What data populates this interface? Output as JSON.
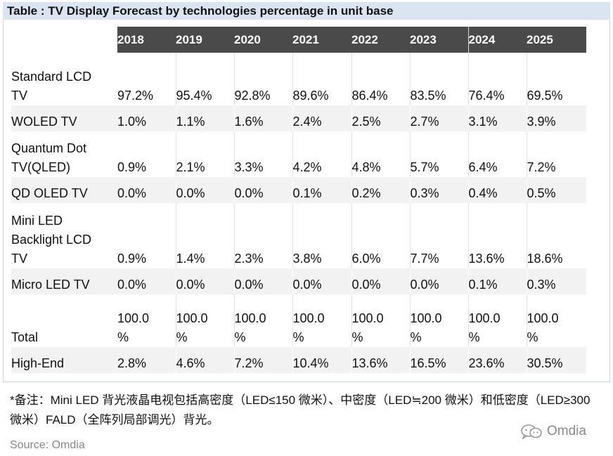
{
  "title": "Table : TV Display Forecast by technologies percentage in unit base",
  "years": [
    "2018",
    "2019",
    "2020",
    "2021",
    "2022",
    "2023",
    "2024",
    "2025"
  ],
  "rows": [
    {
      "label": "Standard LCD\nTV",
      "values": [
        "97.2%",
        "95.4%",
        "92.8%",
        "89.6%",
        "86.4%",
        "83.5%",
        "76.4%",
        "69.5%"
      ]
    },
    {
      "label": "WOLED TV",
      "values": [
        "1.0%",
        "1.1%",
        "1.6%",
        "2.4%",
        "2.5%",
        "2.7%",
        "3.1%",
        "3.9%"
      ]
    },
    {
      "label": "Quantum Dot\nTV(QLED)",
      "values": [
        "0.9%",
        "2.1%",
        "3.3%",
        "4.2%",
        "4.8%",
        "5.7%",
        "6.4%",
        "7.2%"
      ]
    },
    {
      "label": "QD OLED TV",
      "values": [
        "0.0%",
        "0.0%",
        "0.0%",
        "0.1%",
        "0.2%",
        "0.3%",
        "0.4%",
        "0.5%"
      ]
    },
    {
      "label": "Mini LED\nBacklight LCD\nTV",
      "values": [
        "0.9%",
        "1.4%",
        "2.3%",
        "3.8%",
        "6.0%",
        "7.7%",
        "13.6%",
        "18.6%"
      ]
    },
    {
      "label": "Micro LED TV",
      "values": [
        "0.0%",
        "0.0%",
        "0.0%",
        "0.0%",
        "0.0%",
        "0.0%",
        "0.1%",
        "0.3%"
      ]
    },
    {
      "label": "Total",
      "values": [
        "100.0\n%",
        "100.0\n%",
        "100.0\n%",
        "100.0\n%",
        "100.0\n%",
        "100.0\n%",
        "100.0\n%",
        "100.0\n%"
      ]
    },
    {
      "label": "High-End",
      "values": [
        "2.8%",
        "4.6%",
        "7.2%",
        "10.4%",
        "13.6%",
        "16.5%",
        "23.6%",
        "30.5%"
      ]
    }
  ],
  "note": "*备注：Mini LED 背光液晶电视包括高密度（LED≤150 微米）、中密度（LED≒200 微米）和低密度（LED≥300 微米）FALD（全阵列局部调光）背光。",
  "source": "Source: Omdia",
  "brand": "Omdia",
  "brand_icon": "wechat-icon"
}
